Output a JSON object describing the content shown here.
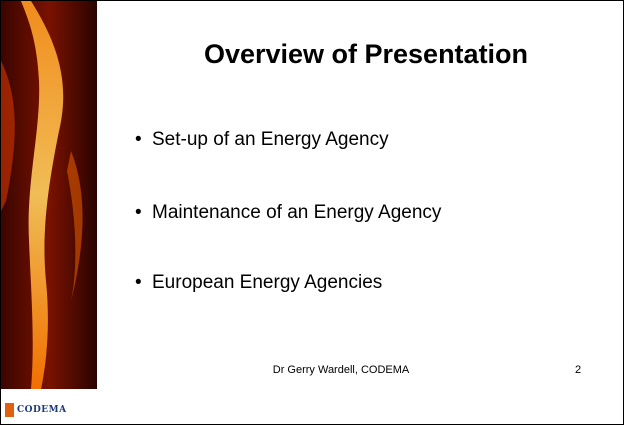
{
  "slide": {
    "title": "Overview of Presentation",
    "bullets": [
      "Set-up of an Energy Agency",
      "Maintenance of an Energy Agency",
      "European Energy Agencies"
    ],
    "footer": "Dr Gerry Wardell, CODEMA",
    "page_number": "2",
    "logo": "CODEMA"
  }
}
